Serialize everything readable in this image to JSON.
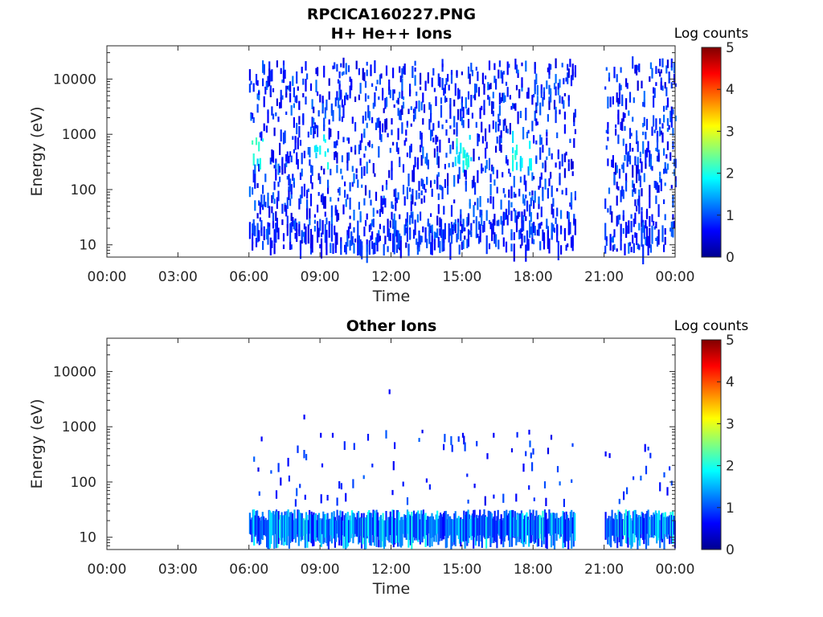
{
  "figure": {
    "title": "RPCICA160227.PNG"
  },
  "chart_data": [
    {
      "type": "heatmap",
      "title": "H+ He++ Ions",
      "xlabel": "Time",
      "ylabel": "Energy (eV)",
      "x_ticks": [
        "00:00",
        "03:00",
        "06:00",
        "09:00",
        "12:00",
        "15:00",
        "18:00",
        "21:00",
        "00:00"
      ],
      "xlim_hours": [
        0,
        24
      ],
      "y_scale": "log",
      "y_ticks": [
        "10",
        "100",
        "1000",
        "10000"
      ],
      "ylim": [
        6,
        40000
      ],
      "colorbar": {
        "label": "Log counts",
        "ticks": [
          "0",
          "1",
          "2",
          "3",
          "4",
          "5"
        ],
        "range": [
          0,
          5
        ],
        "colormap": "jet"
      },
      "data_windows_hours": [
        [
          6.0,
          19.75
        ],
        [
          21.0,
          24.0
        ]
      ],
      "activity": "sparse counts across 10 eV–20 keV, mostly 0–1 log counts; brief peaks ~2 log counts near 300–700 eV around 06:30, 09:00 and 15:00",
      "grid": false
    },
    {
      "type": "heatmap",
      "title": "Other Ions",
      "xlabel": "Time",
      "ylabel": "Energy (eV)",
      "x_ticks": [
        "00:00",
        "03:00",
        "06:00",
        "09:00",
        "12:00",
        "15:00",
        "18:00",
        "21:00",
        "00:00"
      ],
      "xlim_hours": [
        0,
        24
      ],
      "y_scale": "log",
      "y_ticks": [
        "10",
        "100",
        "1000",
        "10000"
      ],
      "ylim": [
        6,
        40000
      ],
      "colorbar": {
        "label": "Log counts",
        "ticks": [
          "0",
          "1",
          "2",
          "3",
          "4",
          "5"
        ],
        "range": [
          0,
          5
        ],
        "colormap": "jet"
      },
      "data_windows_hours": [
        [
          6.0,
          19.75
        ],
        [
          21.0,
          24.0
        ]
      ],
      "activity": "dense band of counts at 10–30 eV (up to ~2 log counts), scattered counts 40–800 eV, isolated points up to ~4000 eV",
      "grid": false
    }
  ]
}
